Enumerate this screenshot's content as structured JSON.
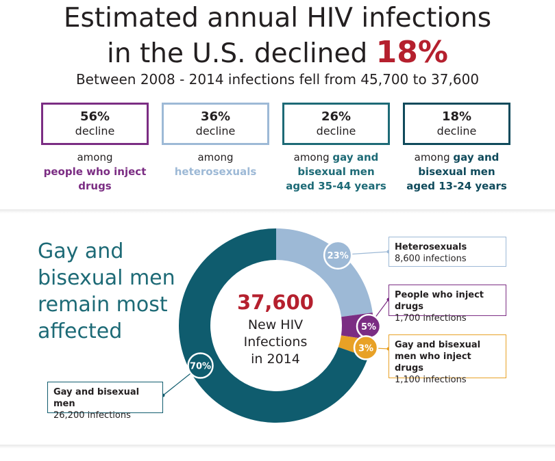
{
  "header": {
    "title_line1": "Estimated annual HIV infections",
    "title_line2": "in the U.S. declined",
    "title_pct": "18%",
    "subtitle": "Between 2008 - 2014 infections fell from 45,700 to 37,600"
  },
  "declines": [
    {
      "value": "56%",
      "word": "decline",
      "among": "among",
      "group": "people who inject drugs",
      "color": "#7b2d83",
      "text_color": "#7b2d83"
    },
    {
      "value": "36%",
      "word": "decline",
      "among": "among",
      "group": "heterosexuals",
      "color": "#9db9d6",
      "text_color": "#9db9d6"
    },
    {
      "value": "26%",
      "word": "decline",
      "among": "among",
      "group_prefix": "gay and",
      "group": "bisexual men aged 35-44 years",
      "color": "#1d6a76",
      "text_color": "#1d6a76"
    },
    {
      "value": "18%",
      "word": "decline",
      "among": "among",
      "group_prefix": "gay and",
      "group": "bisexual men aged 13-24 years",
      "color": "#0f4a5b",
      "text_color": "#0f4a5b"
    }
  ],
  "section": {
    "heading": "Gay and bisexual men remain most affected"
  },
  "center": {
    "number": "37,600",
    "line1": "New HIV",
    "line2": "Infections",
    "line3": "in 2014"
  },
  "chart_data": {
    "type": "pie",
    "total": 37600,
    "series": [
      {
        "name": "Heterosexuals",
        "value": 8600,
        "label": "8,600 infections",
        "pct": "23%",
        "color": "#9db9d6"
      },
      {
        "name": "People who inject drugs",
        "value": 1700,
        "label": "1,700 infections",
        "pct": "5%",
        "color": "#7b2d83"
      },
      {
        "name": "Gay and bisexual men who inject drugs",
        "value": 1100,
        "label": "1,100 infections",
        "pct": "3%",
        "color": "#e8a126"
      },
      {
        "name": "Gay and bisexual men",
        "value": 26200,
        "label": "26,200 infections",
        "pct": "70%",
        "color": "#0f5c6e"
      }
    ]
  }
}
